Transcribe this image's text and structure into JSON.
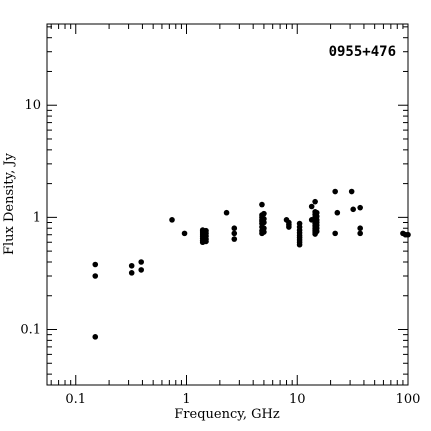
{
  "chart_data": {
    "type": "scatter",
    "title": "0955+476",
    "xlabel": "Frequency, GHz",
    "ylabel": "Flux Density, Jy",
    "xscale": "log",
    "yscale": "log",
    "xlim": [
      0.055,
      100
    ],
    "ylim": [
      0.032,
      53
    ],
    "x_ticks": [
      {
        "value": 0.1,
        "label": "0.1"
      },
      {
        "value": 1,
        "label": "1"
      },
      {
        "value": 10,
        "label": "10"
      },
      {
        "value": 100,
        "label": "100"
      }
    ],
    "y_ticks": [
      {
        "value": 0.1,
        "label": "0.1"
      },
      {
        "value": 1,
        "label": "1"
      },
      {
        "value": 10,
        "label": "10"
      }
    ],
    "title_position": "top-right",
    "grid": false,
    "points": [
      [
        0.15,
        0.38
      ],
      [
        0.15,
        0.3
      ],
      [
        0.15,
        0.086
      ],
      [
        0.32,
        0.37
      ],
      [
        0.32,
        0.32
      ],
      [
        0.39,
        0.4
      ],
      [
        0.39,
        0.34
      ],
      [
        0.74,
        0.95
      ],
      [
        0.96,
        0.72
      ],
      [
        1.4,
        0.77
      ],
      [
        1.4,
        0.74
      ],
      [
        1.4,
        0.71
      ],
      [
        1.4,
        0.68
      ],
      [
        1.4,
        0.65
      ],
      [
        1.4,
        0.62
      ],
      [
        1.4,
        0.6
      ],
      [
        1.5,
        0.76
      ],
      [
        1.5,
        0.72
      ],
      [
        1.5,
        0.68
      ],
      [
        1.5,
        0.64
      ],
      [
        1.5,
        0.61
      ],
      [
        2.3,
        1.1
      ],
      [
        2.7,
        0.8
      ],
      [
        2.7,
        0.72
      ],
      [
        2.7,
        0.64
      ],
      [
        4.8,
        1.3
      ],
      [
        4.8,
        1.05
      ],
      [
        4.8,
        1.0
      ],
      [
        4.8,
        0.95
      ],
      [
        4.8,
        0.92
      ],
      [
        4.8,
        0.88
      ],
      [
        4.8,
        0.82
      ],
      [
        4.8,
        0.76
      ],
      [
        4.8,
        0.72
      ],
      [
        5.0,
        1.08
      ],
      [
        5.0,
        0.97
      ],
      [
        5.0,
        0.9
      ],
      [
        5.0,
        0.8
      ],
      [
        5.0,
        0.74
      ],
      [
        8.0,
        0.95
      ],
      [
        8.4,
        0.9
      ],
      [
        8.4,
        0.86
      ],
      [
        8.4,
        0.82
      ],
      [
        10.5,
        0.88
      ],
      [
        10.5,
        0.82
      ],
      [
        10.5,
        0.77
      ],
      [
        10.5,
        0.73
      ],
      [
        10.5,
        0.69
      ],
      [
        10.5,
        0.66
      ],
      [
        10.5,
        0.63
      ],
      [
        10.5,
        0.6
      ],
      [
        10.5,
        0.57
      ],
      [
        13.5,
        1.25
      ],
      [
        13.5,
        0.95
      ],
      [
        14.5,
        1.38
      ],
      [
        14.5,
        1.12
      ],
      [
        14.5,
        1.06
      ],
      [
        14.5,
        1.0
      ],
      [
        14.5,
        0.96
      ],
      [
        14.5,
        0.92
      ],
      [
        14.5,
        0.88
      ],
      [
        14.5,
        0.84
      ],
      [
        14.5,
        0.8
      ],
      [
        14.5,
        0.77
      ],
      [
        14.5,
        0.74
      ],
      [
        14.5,
        0.71
      ],
      [
        15.0,
        1.1
      ],
      [
        15.0,
        1.02
      ],
      [
        15.0,
        0.95
      ],
      [
        15.0,
        0.9
      ],
      [
        15.0,
        0.85
      ],
      [
        15.0,
        0.8
      ],
      [
        15.0,
        0.75
      ],
      [
        22.0,
        1.7
      ],
      [
        22.0,
        0.72
      ],
      [
        23.0,
        1.1
      ],
      [
        31.0,
        1.7
      ],
      [
        32.0,
        1.18
      ],
      [
        37.0,
        1.22
      ],
      [
        37.0,
        0.8
      ],
      [
        37.0,
        0.72
      ],
      [
        90.0,
        0.72
      ],
      [
        95.0,
        0.7
      ],
      [
        100.0,
        0.7
      ]
    ]
  }
}
